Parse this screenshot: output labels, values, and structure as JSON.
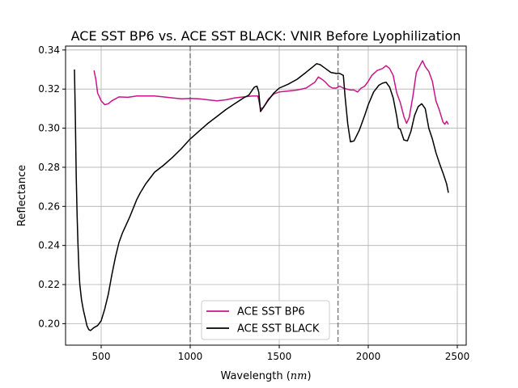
{
  "chart_data": {
    "type": "line",
    "title": "ACE SST BP6 vs. ACE SST BLACK: VNIR Before Lyophilization",
    "xlabel": "Wavelength (nm)",
    "ylabel": "Reflectance",
    "xlim": [
      300,
      2550
    ],
    "ylim": [
      0.189,
      0.342
    ],
    "xticks": [
      500,
      1000,
      1500,
      2000,
      2500
    ],
    "xtick_labels": [
      "500",
      "1000",
      "1500",
      "2000",
      "2500"
    ],
    "yticks": [
      0.2,
      0.22,
      0.24,
      0.26,
      0.28,
      0.3,
      0.32,
      0.34
    ],
    "ytick_labels": [
      "0.20",
      "0.22",
      "0.24",
      "0.26",
      "0.28",
      "0.30",
      "0.32",
      "0.34"
    ],
    "grid": true,
    "legend_position": "bottom-center",
    "vertical_lines": [
      1000,
      1830
    ],
    "vertical_line_color": "#808080",
    "series": [
      {
        "name": "ACE SST BP6",
        "color": "#c71585",
        "points": [
          [
            460,
            0.3295
          ],
          [
            470,
            0.325
          ],
          [
            480,
            0.318
          ],
          [
            500,
            0.314
          ],
          [
            520,
            0.312
          ],
          [
            540,
            0.3125
          ],
          [
            560,
            0.314
          ],
          [
            580,
            0.315
          ],
          [
            600,
            0.316
          ],
          [
            650,
            0.3158
          ],
          [
            700,
            0.3165
          ],
          [
            750,
            0.3165
          ],
          [
            800,
            0.3165
          ],
          [
            850,
            0.316
          ],
          [
            900,
            0.3155
          ],
          [
            950,
            0.315
          ],
          [
            1000,
            0.3152
          ],
          [
            1050,
            0.315
          ],
          [
            1100,
            0.3145
          ],
          [
            1150,
            0.314
          ],
          [
            1200,
            0.3145
          ],
          [
            1250,
            0.3155
          ],
          [
            1300,
            0.316
          ],
          [
            1350,
            0.3165
          ],
          [
            1380,
            0.3165
          ],
          [
            1395,
            0.31
          ],
          [
            1410,
            0.3105
          ],
          [
            1440,
            0.315
          ],
          [
            1470,
            0.3175
          ],
          [
            1500,
            0.3185
          ],
          [
            1550,
            0.319
          ],
          [
            1600,
            0.3195
          ],
          [
            1650,
            0.3205
          ],
          [
            1700,
            0.3235
          ],
          [
            1720,
            0.3262
          ],
          [
            1740,
            0.325
          ],
          [
            1760,
            0.3235
          ],
          [
            1780,
            0.3215
          ],
          [
            1800,
            0.3205
          ],
          [
            1820,
            0.3205
          ],
          [
            1840,
            0.3215
          ],
          [
            1860,
            0.3205
          ],
          [
            1880,
            0.32
          ],
          [
            1900,
            0.3195
          ],
          [
            1920,
            0.3195
          ],
          [
            1940,
            0.3185
          ],
          [
            1960,
            0.3205
          ],
          [
            1980,
            0.3215
          ],
          [
            2000,
            0.324
          ],
          [
            2020,
            0.327
          ],
          [
            2050,
            0.3295
          ],
          [
            2080,
            0.3305
          ],
          [
            2100,
            0.332
          ],
          [
            2120,
            0.3305
          ],
          [
            2140,
            0.327
          ],
          [
            2160,
            0.318
          ],
          [
            2180,
            0.313
          ],
          [
            2200,
            0.306
          ],
          [
            2215,
            0.3025
          ],
          [
            2230,
            0.3055
          ],
          [
            2250,
            0.316
          ],
          [
            2270,
            0.3285
          ],
          [
            2290,
            0.332
          ],
          [
            2305,
            0.3345
          ],
          [
            2320,
            0.3315
          ],
          [
            2340,
            0.329
          ],
          [
            2360,
            0.324
          ],
          [
            2380,
            0.314
          ],
          [
            2400,
            0.309
          ],
          [
            2420,
            0.303
          ],
          [
            2430,
            0.302
          ],
          [
            2440,
            0.3035
          ],
          [
            2450,
            0.302
          ]
        ]
      },
      {
        "name": "ACE SST BLACK",
        "color": "#000000",
        "points": [
          [
            350,
            0.33
          ],
          [
            355,
            0.305
          ],
          [
            360,
            0.275
          ],
          [
            365,
            0.255
          ],
          [
            370,
            0.24
          ],
          [
            375,
            0.228
          ],
          [
            380,
            0.22
          ],
          [
            390,
            0.212
          ],
          [
            400,
            0.207
          ],
          [
            410,
            0.203
          ],
          [
            420,
            0.199
          ],
          [
            430,
            0.197
          ],
          [
            440,
            0.1965
          ],
          [
            460,
            0.198
          ],
          [
            480,
            0.199
          ],
          [
            500,
            0.2015
          ],
          [
            520,
            0.2075
          ],
          [
            540,
            0.215
          ],
          [
            560,
            0.225
          ],
          [
            580,
            0.234
          ],
          [
            600,
            0.2415
          ],
          [
            620,
            0.2465
          ],
          [
            640,
            0.2505
          ],
          [
            660,
            0.2545
          ],
          [
            680,
            0.259
          ],
          [
            700,
            0.2635
          ],
          [
            720,
            0.267
          ],
          [
            750,
            0.2715
          ],
          [
            800,
            0.2775
          ],
          [
            850,
            0.281
          ],
          [
            900,
            0.285
          ],
          [
            950,
            0.2895
          ],
          [
            1000,
            0.2945
          ],
          [
            1050,
            0.2985
          ],
          [
            1100,
            0.3025
          ],
          [
            1150,
            0.306
          ],
          [
            1200,
            0.3095
          ],
          [
            1250,
            0.3125
          ],
          [
            1300,
            0.3155
          ],
          [
            1330,
            0.317
          ],
          [
            1360,
            0.321
          ],
          [
            1375,
            0.3215
          ],
          [
            1385,
            0.3185
          ],
          [
            1395,
            0.3085
          ],
          [
            1410,
            0.3105
          ],
          [
            1440,
            0.3145
          ],
          [
            1470,
            0.318
          ],
          [
            1500,
            0.3205
          ],
          [
            1550,
            0.3225
          ],
          [
            1600,
            0.325
          ],
          [
            1650,
            0.3285
          ],
          [
            1690,
            0.3315
          ],
          [
            1710,
            0.333
          ],
          [
            1730,
            0.3325
          ],
          [
            1760,
            0.3305
          ],
          [
            1790,
            0.3285
          ],
          [
            1820,
            0.328
          ],
          [
            1840,
            0.328
          ],
          [
            1860,
            0.327
          ],
          [
            1870,
            0.316
          ],
          [
            1885,
            0.302
          ],
          [
            1900,
            0.293
          ],
          [
            1920,
            0.2935
          ],
          [
            1950,
            0.299
          ],
          [
            1980,
            0.3065
          ],
          [
            2000,
            0.312
          ],
          [
            2030,
            0.3185
          ],
          [
            2060,
            0.322
          ],
          [
            2080,
            0.323
          ],
          [
            2100,
            0.3235
          ],
          [
            2120,
            0.321
          ],
          [
            2140,
            0.3155
          ],
          [
            2160,
            0.306
          ],
          [
            2170,
            0.3
          ],
          [
            2180,
            0.2995
          ],
          [
            2200,
            0.294
          ],
          [
            2220,
            0.2935
          ],
          [
            2240,
            0.2985
          ],
          [
            2260,
            0.3065
          ],
          [
            2280,
            0.311
          ],
          [
            2300,
            0.3125
          ],
          [
            2320,
            0.31
          ],
          [
            2340,
            0.3
          ],
          [
            2360,
            0.2945
          ],
          [
            2380,
            0.2875
          ],
          [
            2400,
            0.282
          ],
          [
            2420,
            0.277
          ],
          [
            2440,
            0.2715
          ],
          [
            2450,
            0.267
          ]
        ]
      }
    ]
  }
}
